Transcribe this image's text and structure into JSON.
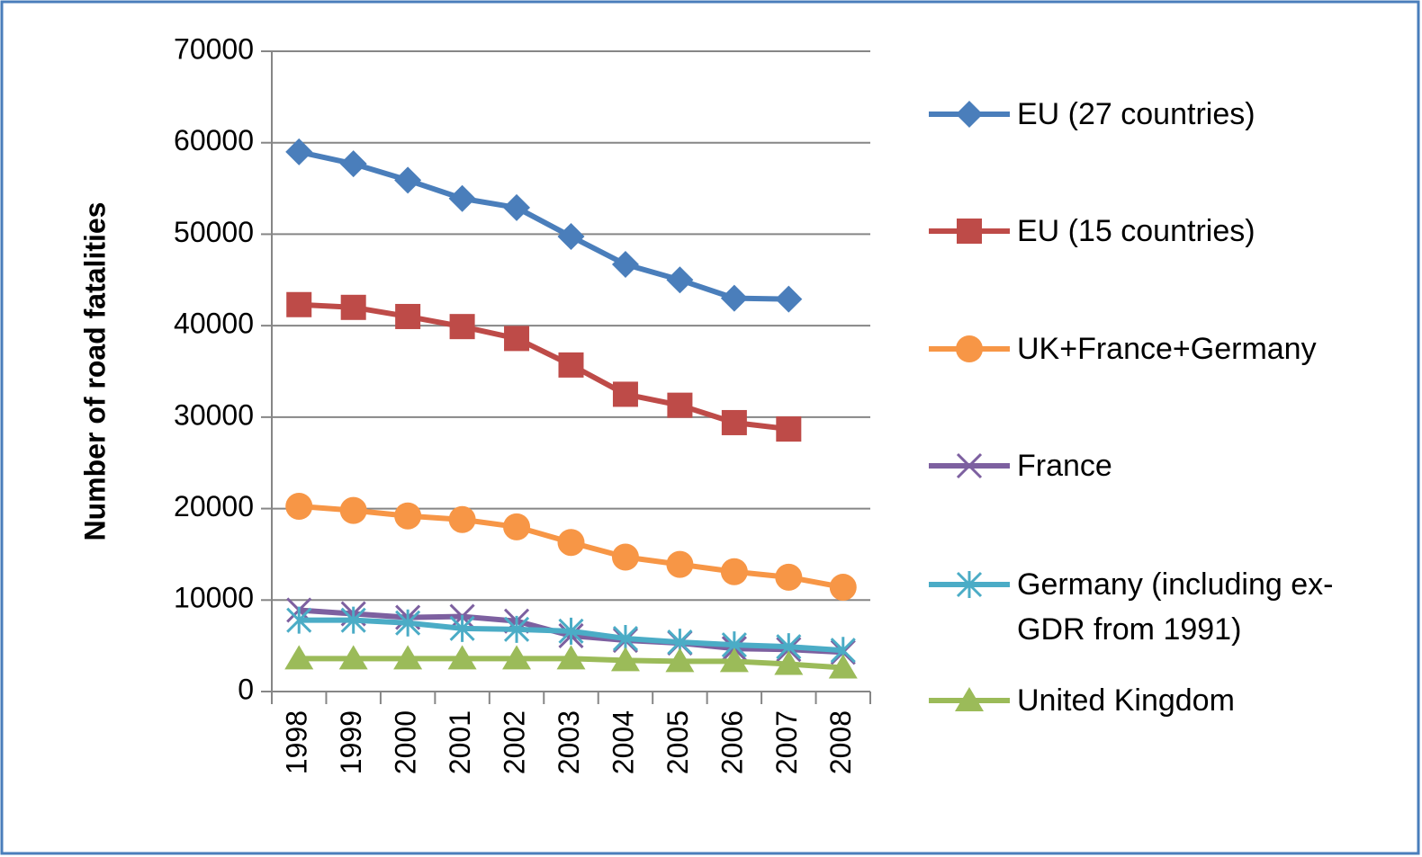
{
  "chart_data": {
    "type": "line",
    "y_label": "Number of road fatalities",
    "categories": [
      "1998",
      "1999",
      "2000",
      "2001",
      "2002",
      "2003",
      "2004",
      "2005",
      "2006",
      "2007",
      "2008"
    ],
    "series": [
      {
        "name": "EU (27 countries)",
        "color": "#4a7ebb",
        "marker": "diamond",
        "values": [
          59000,
          57700,
          55900,
          53900,
          52900,
          49750,
          46700,
          45000,
          43000,
          42900,
          null
        ]
      },
      {
        "name": "EU (15 countries)",
        "color": "#be4b48",
        "marker": "square",
        "values": [
          42300,
          42000,
          41000,
          39900,
          38600,
          35700,
          32500,
          31300,
          29400,
          28700,
          null
        ]
      },
      {
        "name": "UK+France+Germany",
        "color": "#f79646",
        "marker": "circle",
        "values": [
          20250,
          19800,
          19200,
          18800,
          18000,
          16300,
          14700,
          13900,
          13100,
          12500,
          11400
        ]
      },
      {
        "name": "France",
        "color": "#7d60a0",
        "marker": "x",
        "values": [
          8900,
          8500,
          8100,
          8200,
          7700,
          6100,
          5600,
          5300,
          4700,
          4600,
          4300
        ]
      },
      {
        "name": "Germany (including ex-GDR from 1991)",
        "color": "#4bacc6",
        "marker": "asterisk",
        "values": [
          7800,
          7800,
          7500,
          6900,
          6800,
          6600,
          5800,
          5400,
          5100,
          4900,
          4500
        ]
      },
      {
        "name": "United Kingdom",
        "color": "#9bbb59",
        "marker": "triangle",
        "values": [
          3600,
          3600,
          3600,
          3600,
          3600,
          3600,
          3400,
          3300,
          3300,
          3000,
          2600
        ]
      }
    ],
    "ylim": [
      0,
      70000
    ],
    "yticks": [
      0,
      10000,
      20000,
      30000,
      40000,
      50000,
      60000,
      70000
    ],
    "grid": true,
    "legend": "right"
  }
}
